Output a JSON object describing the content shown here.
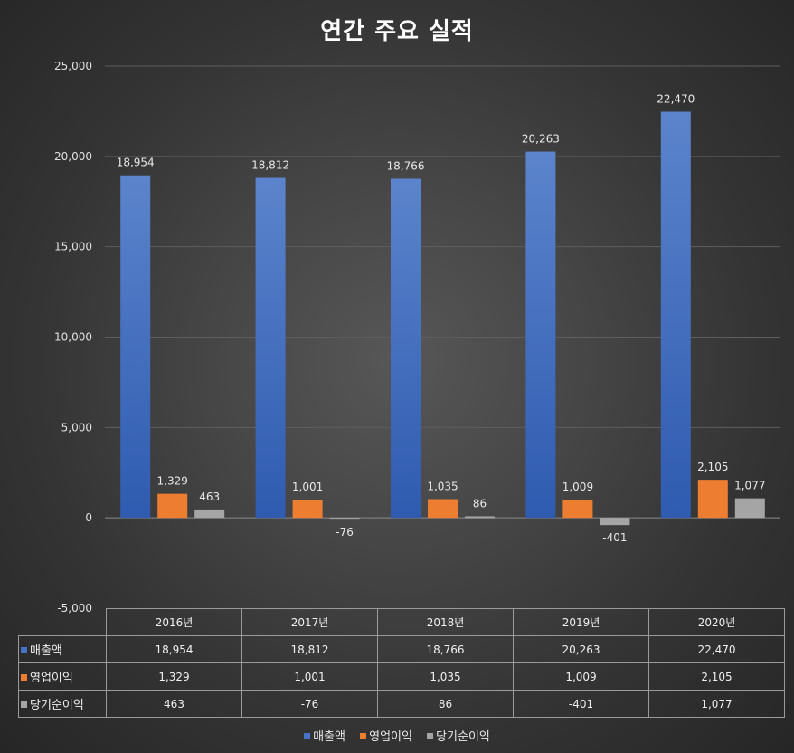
{
  "chart_data": {
    "type": "bar",
    "title": "연간 주요 실적",
    "categories": [
      "2016년",
      "2017년",
      "2018년",
      "2019년",
      "2020년"
    ],
    "series": [
      {
        "name": "매출액",
        "values": [
          18954,
          18812,
          18766,
          20263,
          22470
        ],
        "labels": [
          "18,954",
          "18,812",
          "18,766",
          "20,263",
          "22,470"
        ],
        "color": "#4472C4"
      },
      {
        "name": "영업이익",
        "values": [
          1329,
          1001,
          1035,
          1009,
          2105
        ],
        "labels": [
          "1,329",
          "1,001",
          "1,035",
          "1,009",
          "2,105"
        ],
        "color": "#ED7D31"
      },
      {
        "name": "당기순이익",
        "values": [
          463,
          -76,
          86,
          -401,
          1077
        ],
        "labels": [
          "463",
          "-76",
          "86",
          "-401",
          "1,077"
        ],
        "color": "#A5A5A5"
      }
    ],
    "y_ticks": [
      "25,000",
      "20,000",
      "15,000",
      "10,000",
      "5,000",
      "0",
      "-5,000"
    ],
    "ylim": [
      -5000,
      25000
    ],
    "xlabel": "",
    "ylabel": "",
    "grid": true,
    "legend": "bottom",
    "data_table": true
  }
}
